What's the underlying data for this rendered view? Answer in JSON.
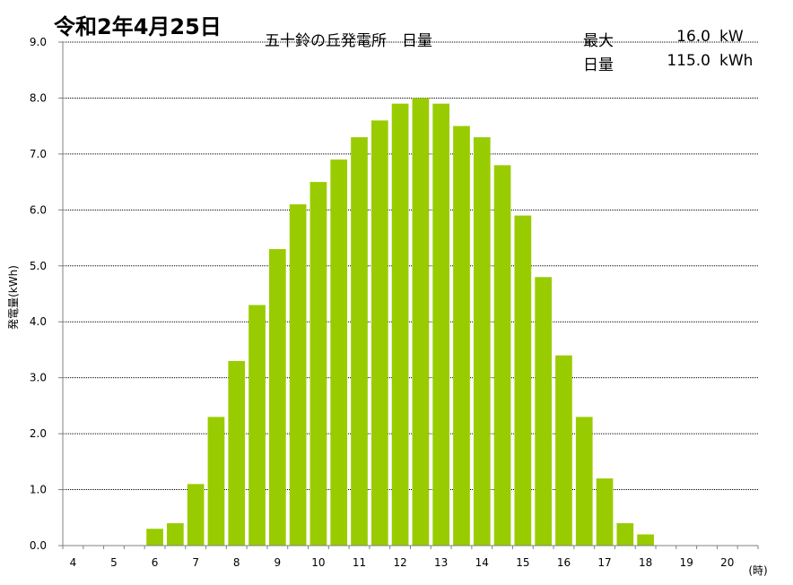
{
  "header": {
    "date_title": "令和2年4月25日",
    "chart_title": "五十鈴の丘発電所　日量",
    "summary": [
      {
        "label": "最大",
        "value": "16.0",
        "unit": "kW"
      },
      {
        "label": "日量",
        "value": "115.0",
        "unit": "kWh"
      }
    ]
  },
  "colors": {
    "bar": "#99cc00",
    "grid": "#000000",
    "axis": "#808080"
  },
  "chart_data": {
    "type": "bar",
    "title": "五十鈴の丘発電所　日量",
    "ylabel": "発電量(kWh)",
    "xunit": "(時)",
    "ylim": [
      0,
      9
    ],
    "y_ticks": [
      "0.0",
      "1.0",
      "2.0",
      "3.0",
      "4.0",
      "5.0",
      "6.0",
      "7.0",
      "8.0",
      "9.0"
    ],
    "x_tick_labels": [
      "4",
      "5",
      "6",
      "7",
      "8",
      "9",
      "10",
      "11",
      "12",
      "13",
      "14",
      "15",
      "16",
      "17",
      "18",
      "19",
      "20"
    ],
    "grid": true,
    "categories": [
      "4:00",
      "4:30",
      "5:00",
      "5:30",
      "6:00",
      "6:30",
      "7:00",
      "7:30",
      "8:00",
      "8:30",
      "9:00",
      "9:30",
      "10:00",
      "10:30",
      "11:00",
      "11:30",
      "12:00",
      "12:30",
      "13:00",
      "13:30",
      "14:00",
      "14:30",
      "15:00",
      "15:30",
      "16:00",
      "16:30",
      "17:00",
      "17:30",
      "18:00",
      "18:30",
      "19:00",
      "19:30",
      "20:00",
      "20:30"
    ],
    "values": [
      0,
      0,
      0,
      0,
      0.3,
      0.4,
      1.1,
      2.3,
      3.3,
      4.3,
      5.3,
      6.1,
      6.5,
      6.9,
      7.3,
      7.6,
      7.9,
      8.0,
      7.9,
      7.5,
      7.3,
      6.8,
      5.9,
      4.8,
      3.4,
      2.3,
      1.2,
      0.4,
      0.2,
      0,
      0,
      0,
      0,
      0
    ]
  }
}
